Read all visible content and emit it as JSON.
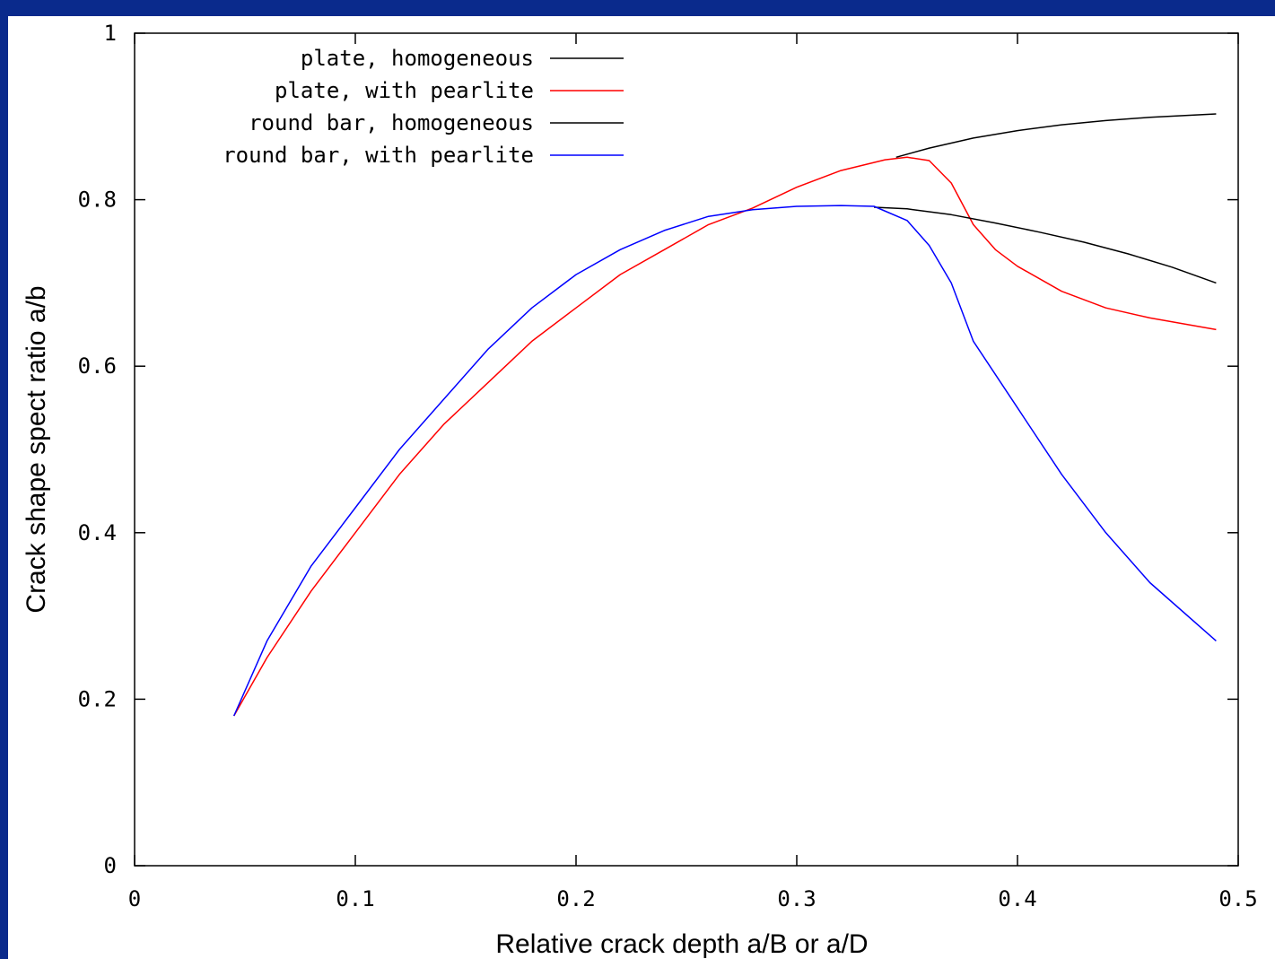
{
  "colors": {
    "frame_accent": "#0a2a8c",
    "black": "#000000",
    "red": "#ff0000",
    "blue": "#0000ff"
  },
  "chart_data": {
    "type": "line",
    "title": "",
    "xlabel": "Relative crack depth a/B or a/D",
    "ylabel": "Crack shape spect ratio a/b",
    "xlim": [
      0,
      0.5
    ],
    "ylim": [
      0,
      1
    ],
    "xticks": [
      "0",
      "0.1",
      "0.2",
      "0.3",
      "0.4",
      "0.5"
    ],
    "yticks": [
      "0",
      "0.2",
      "0.4",
      "0.6",
      "0.8",
      "1"
    ],
    "grid": false,
    "legend_position": "top-left",
    "series": [
      {
        "name": "plate, homogeneous",
        "color": "#000000",
        "x": [
          0.345,
          0.36,
          0.38,
          0.4,
          0.42,
          0.44,
          0.46,
          0.49
        ],
        "y": [
          0.851,
          0.862,
          0.874,
          0.883,
          0.89,
          0.895,
          0.899,
          0.903
        ]
      },
      {
        "name": "plate, with pearlite",
        "color": "#ff0000",
        "x": [
          0.045,
          0.06,
          0.08,
          0.1,
          0.12,
          0.14,
          0.16,
          0.18,
          0.2,
          0.22,
          0.24,
          0.26,
          0.28,
          0.3,
          0.32,
          0.34,
          0.35,
          0.36,
          0.37,
          0.38,
          0.39,
          0.4,
          0.42,
          0.44,
          0.46,
          0.49
        ],
        "y": [
          0.18,
          0.25,
          0.33,
          0.4,
          0.47,
          0.53,
          0.58,
          0.63,
          0.67,
          0.71,
          0.74,
          0.77,
          0.79,
          0.815,
          0.835,
          0.848,
          0.851,
          0.847,
          0.82,
          0.77,
          0.74,
          0.72,
          0.69,
          0.67,
          0.658,
          0.644
        ]
      },
      {
        "name": "round bar, homogeneous",
        "color": "#000000",
        "x": [
          0.335,
          0.35,
          0.37,
          0.39,
          0.41,
          0.43,
          0.45,
          0.47,
          0.49
        ],
        "y": [
          0.791,
          0.789,
          0.782,
          0.772,
          0.761,
          0.749,
          0.735,
          0.719,
          0.7
        ]
      },
      {
        "name": "round bar, with pearlite",
        "color": "#0000ff",
        "x": [
          0.045,
          0.06,
          0.08,
          0.1,
          0.12,
          0.14,
          0.16,
          0.18,
          0.2,
          0.22,
          0.24,
          0.26,
          0.28,
          0.3,
          0.32,
          0.335,
          0.35,
          0.36,
          0.37,
          0.38,
          0.4,
          0.42,
          0.44,
          0.46,
          0.49
        ],
        "y": [
          0.18,
          0.27,
          0.36,
          0.43,
          0.5,
          0.56,
          0.62,
          0.67,
          0.71,
          0.74,
          0.763,
          0.78,
          0.788,
          0.792,
          0.793,
          0.792,
          0.775,
          0.745,
          0.7,
          0.63,
          0.55,
          0.47,
          0.4,
          0.34,
          0.27
        ]
      }
    ]
  }
}
